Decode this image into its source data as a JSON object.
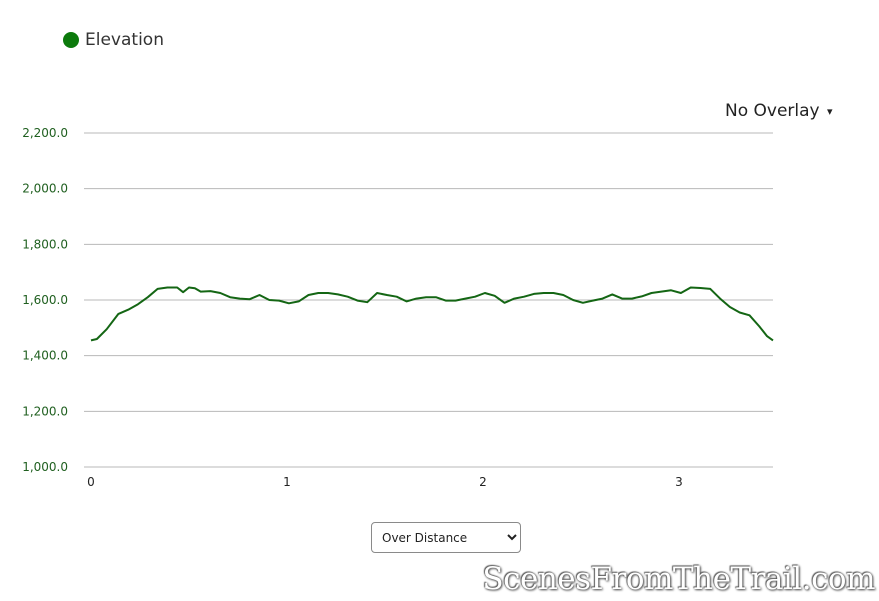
{
  "legend": {
    "label": "Elevation",
    "color": "#0c7a0c",
    "icon": "circle-dot"
  },
  "overlay_menu": {
    "label": "No Overlay",
    "arrow": "▾"
  },
  "x_mode_select": {
    "selected": "Over Distance",
    "options": [
      "Over Distance"
    ]
  },
  "watermark": "ScenesFromTheTrail.com",
  "colors": {
    "line": "#146614",
    "grid": "#b8b8b8",
    "axis_tick_text": "#1f5f1f",
    "x_tick_text": "#222222"
  },
  "chart_data": {
    "type": "line",
    "title": "",
    "xlabel": "",
    "ylabel": "",
    "xlim": [
      0,
      3.48
    ],
    "ylim": [
      1000,
      2200
    ],
    "y_ticks": [
      "1,000.0",
      "1,200.0",
      "1,400.0",
      "1,600.0",
      "1,800.0",
      "2,000.0",
      "2,200.0"
    ],
    "y_tick_values": [
      1000,
      1200,
      1400,
      1600,
      1800,
      2000,
      2200
    ],
    "x_ticks": [
      "0",
      "1",
      "2",
      "3"
    ],
    "x_tick_values": [
      0,
      1,
      2,
      3
    ],
    "grid": true,
    "series": [
      {
        "name": "Elevation",
        "x": [
          0,
          0.03,
          0.08,
          0.14,
          0.19,
          0.24,
          0.29,
          0.34,
          0.39,
          0.44,
          0.47,
          0.5,
          0.53,
          0.56,
          0.61,
          0.66,
          0.71,
          0.76,
          0.81,
          0.86,
          0.91,
          0.96,
          1.01,
          1.06,
          1.11,
          1.16,
          1.21,
          1.26,
          1.31,
          1.36,
          1.41,
          1.46,
          1.51,
          1.56,
          1.61,
          1.66,
          1.71,
          1.76,
          1.81,
          1.86,
          1.91,
          1.96,
          2.01,
          2.06,
          2.11,
          2.16,
          2.21,
          2.26,
          2.31,
          2.36,
          2.41,
          2.46,
          2.51,
          2.56,
          2.61,
          2.66,
          2.71,
          2.76,
          2.81,
          2.86,
          2.91,
          2.96,
          3.01,
          3.06,
          3.11,
          3.16,
          3.21,
          3.26,
          3.31,
          3.36,
          3.41,
          3.45,
          3.48
        ],
        "y": [
          1455,
          1460,
          1495,
          1550,
          1565,
          1585,
          1610,
          1640,
          1645,
          1645,
          1628,
          1645,
          1642,
          1630,
          1632,
          1625,
          1610,
          1605,
          1603,
          1618,
          1600,
          1598,
          1588,
          1595,
          1618,
          1625,
          1625,
          1620,
          1612,
          1598,
          1592,
          1625,
          1618,
          1612,
          1595,
          1605,
          1610,
          1610,
          1598,
          1598,
          1605,
          1612,
          1625,
          1615,
          1590,
          1605,
          1612,
          1622,
          1625,
          1625,
          1618,
          1600,
          1590,
          1598,
          1605,
          1620,
          1605,
          1605,
          1613,
          1625,
          1630,
          1635,
          1625,
          1645,
          1643,
          1640,
          1605,
          1575,
          1555,
          1545,
          1505,
          1470,
          1455
        ]
      }
    ]
  }
}
